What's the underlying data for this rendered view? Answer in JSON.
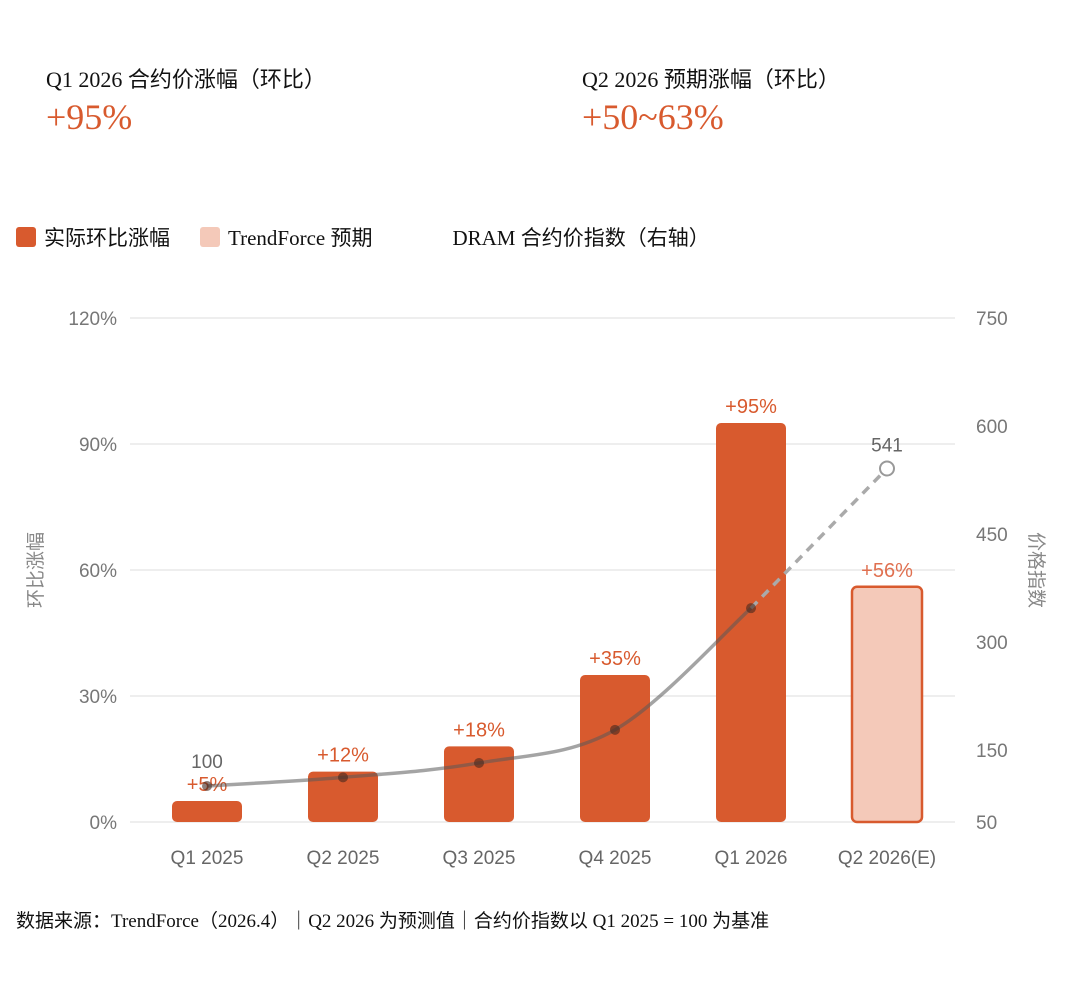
{
  "kpis": [
    {
      "label": "Q1 2026 合约价涨幅（环比）",
      "value": "+95%"
    },
    {
      "label": "Q2 2026 预期涨幅（环比）",
      "value": "+50~63%"
    }
  ],
  "legend": [
    {
      "label": "实际环比涨幅",
      "color": "#d85a2e"
    },
    {
      "label": "TrendForce 预期",
      "color": "#f4c9b9"
    },
    {
      "label": "DRAM 合约价指数（右轴）"
    }
  ],
  "footer": "数据来源：TrendForce（2026.4）｜Q2 2026 为预测值｜合约价指数以 Q1 2025 = 100 为基准",
  "chart_data": {
    "type": "bar",
    "categories": [
      "Q1 2025",
      "Q2 2025",
      "Q3 2025",
      "Q4 2025",
      "Q1 2026",
      "Q2 2026(E)"
    ],
    "ylabel": "环比涨幅",
    "y2label": "价格指数",
    "ylim": [
      0,
      120
    ],
    "yticks": [
      "0%",
      "30%",
      "60%",
      "90%",
      "120%"
    ],
    "y2lim": [
      50,
      750
    ],
    "y2ticks": [
      "50",
      "150",
      "300",
      "450",
      "600",
      "750"
    ],
    "grid": true,
    "legend_position": "top-left",
    "series": [
      {
        "name": "实际环比涨幅",
        "type": "bar",
        "values": [
          5,
          12,
          18,
          35,
          95,
          null
        ],
        "labels": [
          "+5%",
          "+12%",
          "+18%",
          "+35%",
          "+95%",
          ""
        ],
        "color": "#d85a2e"
      },
      {
        "name": "TrendForce 预期",
        "type": "bar",
        "values": [
          null,
          null,
          null,
          null,
          null,
          56
        ],
        "labels": [
          "",
          "",
          "",
          "",
          "",
          "+56%"
        ],
        "color": "#f4c9b9"
      },
      {
        "name": "DRAM 合约价指数（右轴）",
        "type": "line",
        "axis": "right",
        "values": [
          100,
          112,
          132,
          178,
          347,
          541
        ],
        "point_labels": [
          "100",
          "",
          "",
          "",
          "",
          "541"
        ],
        "projected_from_index": 4,
        "color": "#888888"
      }
    ]
  }
}
